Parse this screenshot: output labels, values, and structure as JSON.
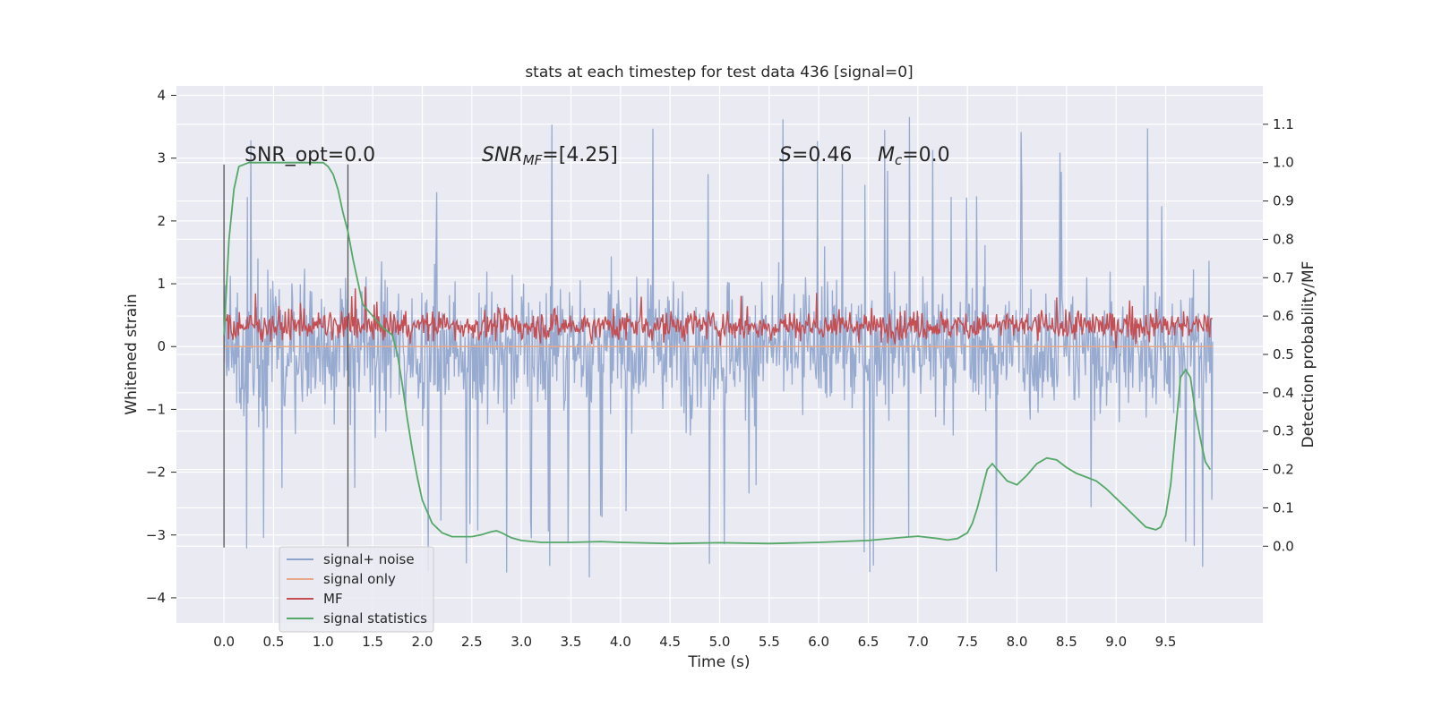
{
  "chart_data": {
    "type": "line",
    "title": "stats at each timestep for test data 436 [signal=0]",
    "xlabel": "Time (s)",
    "ylabel_left": "Whitened strain",
    "ylabel_right": "Detection probability/MF",
    "xlim": [
      -0.48,
      10.48
    ],
    "ylim_left": [
      -4.4,
      4.15
    ],
    "ylim_right": [
      -0.2,
      1.2
    ],
    "x_ticks": [
      "0.0",
      "0.5",
      "1.0",
      "1.5",
      "2.0",
      "2.5",
      "3.0",
      "3.5",
      "4.0",
      "4.5",
      "5.0",
      "5.5",
      "6.0",
      "6.5",
      "7.0",
      "7.5",
      "8.0",
      "8.5",
      "9.0",
      "9.5"
    ],
    "y_left_ticks": [
      "−4",
      "−3",
      "−2",
      "−1",
      "0",
      "1",
      "2",
      "3",
      "4"
    ],
    "y_right_ticks": [
      "0.0",
      "0.1",
      "0.2",
      "0.3",
      "0.4",
      "0.5",
      "0.6",
      "0.7",
      "0.8",
      "0.9",
      "1.0",
      "1.1"
    ],
    "grid": true,
    "legend_position": "lower-left",
    "annotations": {
      "snr_opt": "SNR_opt=0.0",
      "snr_mf": "=[4.25]",
      "snr_mf_symbol": "SNR",
      "snr_mf_sub": "MF",
      "s_value": "=0.46",
      "s_symbol": "S",
      "mc_value": "=0.0",
      "mc_symbol": "M",
      "mc_sub": "c"
    },
    "vertical_lines_x": [
      0.0,
      1.25
    ],
    "series": [
      {
        "name": "signal+ noise",
        "color": "#8ea3cc",
        "axis": "left",
        "description_values": "noise band ±1.7 with spikes up to 3.7 and down to −4.05"
      },
      {
        "name": "signal only",
        "color": "#e8a98a",
        "axis": "left",
        "values_constant": 0.0
      },
      {
        "name": "MF",
        "color": "#c44e52",
        "axis": "right",
        "mean": 0.575,
        "amplitude": 0.05
      },
      {
        "name": "signal statistics",
        "color": "#55a868",
        "axis": "right",
        "x": [
          0.0,
          0.05,
          0.1,
          0.15,
          0.25,
          0.4,
          0.6,
          0.8,
          1.0,
          1.05,
          1.1,
          1.15,
          1.2,
          1.25,
          1.3,
          1.4,
          1.5,
          1.6,
          1.7,
          1.75,
          1.8,
          1.85,
          1.9,
          1.95,
          2.0,
          2.1,
          2.2,
          2.3,
          2.5,
          2.6,
          2.7,
          2.75,
          2.8,
          2.9,
          3.0,
          3.2,
          3.5,
          3.8,
          4.0,
          4.5,
          5.0,
          5.5,
          6.0,
          6.5,
          6.8,
          7.0,
          7.2,
          7.3,
          7.4,
          7.5,
          7.55,
          7.6,
          7.7,
          7.75,
          7.8,
          7.9,
          8.0,
          8.1,
          8.2,
          8.3,
          8.4,
          8.5,
          8.6,
          8.7,
          8.8,
          8.9,
          9.0,
          9.1,
          9.2,
          9.3,
          9.4,
          9.45,
          9.5,
          9.55,
          9.6,
          9.65,
          9.7,
          9.75,
          9.8,
          9.85,
          9.9,
          9.95
        ],
        "values": [
          0.55,
          0.8,
          0.93,
          0.99,
          1.0,
          1.0,
          1.0,
          1.0,
          1.0,
          0.99,
          0.97,
          0.93,
          0.87,
          0.82,
          0.75,
          0.63,
          0.6,
          0.57,
          0.55,
          0.5,
          0.42,
          0.33,
          0.25,
          0.18,
          0.12,
          0.06,
          0.035,
          0.025,
          0.025,
          0.03,
          0.038,
          0.04,
          0.035,
          0.022,
          0.015,
          0.01,
          0.01,
          0.012,
          0.01,
          0.007,
          0.009,
          0.007,
          0.01,
          0.015,
          0.022,
          0.026,
          0.02,
          0.016,
          0.02,
          0.035,
          0.06,
          0.1,
          0.2,
          0.215,
          0.2,
          0.17,
          0.16,
          0.185,
          0.215,
          0.23,
          0.225,
          0.205,
          0.19,
          0.18,
          0.17,
          0.15,
          0.125,
          0.1,
          0.075,
          0.05,
          0.043,
          0.05,
          0.08,
          0.16,
          0.3,
          0.44,
          0.46,
          0.44,
          0.35,
          0.28,
          0.22,
          0.2
        ]
      }
    ]
  }
}
